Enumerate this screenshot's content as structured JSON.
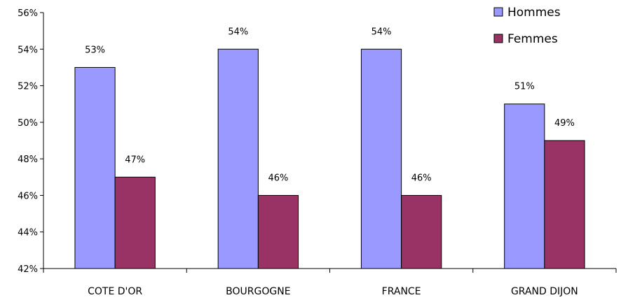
{
  "chart_data": {
    "type": "bar",
    "categories": [
      "COTE D'OR",
      "BOURGOGNE",
      "FRANCE",
      "GRAND DIJON"
    ],
    "series": [
      {
        "name": "Hommes",
        "values": [
          53,
          54,
          54,
          51
        ],
        "labels": [
          "53%",
          "54%",
          "54%",
          "51%"
        ],
        "color": "#9999ff"
      },
      {
        "name": "Femmes",
        "values": [
          47,
          46,
          46,
          49
        ],
        "labels": [
          "47%",
          "46%",
          "46%",
          "49%"
        ],
        "color": "#993366"
      }
    ],
    "ylim": [
      42,
      56
    ],
    "yticks": [
      42,
      44,
      46,
      48,
      50,
      52,
      54,
      56
    ],
    "ytick_labels": [
      "42%",
      "44%",
      "46%",
      "48%",
      "50%",
      "52%",
      "54%",
      "56%"
    ],
    "title": "",
    "xlabel": "",
    "ylabel": "",
    "grid": false,
    "legend_position": "top-right"
  }
}
